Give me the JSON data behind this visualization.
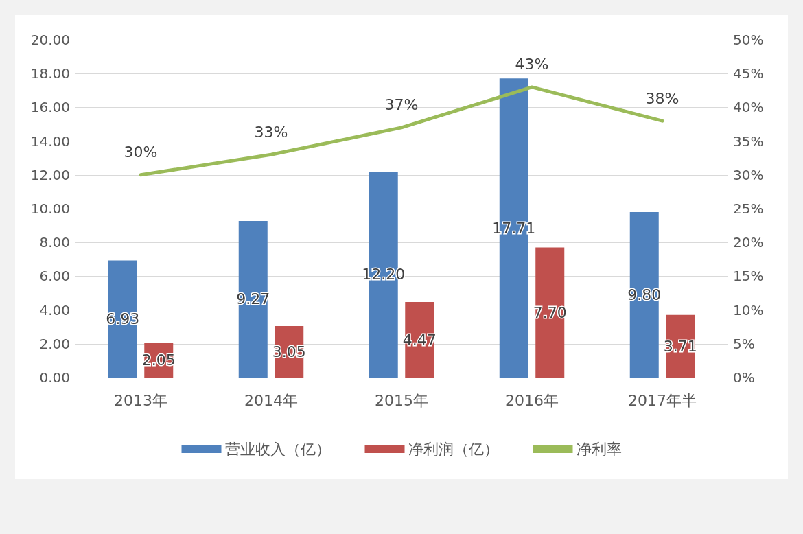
{
  "chart_data": {
    "type": "bar",
    "categories": [
      "2013年",
      "2014年",
      "2015年",
      "2016年",
      "2017年半"
    ],
    "series": [
      {
        "name": "营业收入（亿）",
        "color": "#4f81bd",
        "values": [
          6.93,
          9.27,
          12.2,
          17.71,
          9.8
        ],
        "value_labels": [
          "6.93",
          "9.27",
          "12.20",
          "17.71",
          "9.80"
        ]
      },
      {
        "name": "净利润（亿）",
        "color": "#c0504d",
        "values": [
          2.05,
          3.05,
          4.47,
          7.7,
          3.71
        ],
        "value_labels": [
          "2.05",
          "3.05",
          "4.47",
          "7.70",
          "3.71"
        ]
      },
      {
        "name": "净利率",
        "type": "line",
        "axis": "y2",
        "color": "#9bbb59",
        "values": [
          30,
          33,
          37,
          43,
          38
        ],
        "value_labels": [
          "30%",
          "33%",
          "37%",
          "43%",
          "38%"
        ]
      }
    ],
    "ylim": [
      0,
      20
    ],
    "yticks": [
      {
        "value": 0,
        "label": "0.00"
      },
      {
        "value": 2,
        "label": "2.00"
      },
      {
        "value": 4,
        "label": "4.00"
      },
      {
        "value": 6,
        "label": "6.00"
      },
      {
        "value": 8,
        "label": "8.00"
      },
      {
        "value": 10,
        "label": "10.00"
      },
      {
        "value": 12,
        "label": "12.00"
      },
      {
        "value": 14,
        "label": "14.00"
      },
      {
        "value": 16,
        "label": "16.00"
      },
      {
        "value": 18,
        "label": "18.00"
      },
      {
        "value": 20,
        "label": "20.00"
      }
    ],
    "y2lim": [
      0,
      50
    ],
    "y2ticks": [
      {
        "value": 0,
        "label": "0%"
      },
      {
        "value": 5,
        "label": "5%"
      },
      {
        "value": 10,
        "label": "10%"
      },
      {
        "value": 15,
        "label": "15%"
      },
      {
        "value": 20,
        "label": "20%"
      },
      {
        "value": 25,
        "label": "25%"
      },
      {
        "value": 30,
        "label": "30%"
      },
      {
        "value": 35,
        "label": "35%"
      },
      {
        "value": 40,
        "label": "40%"
      },
      {
        "value": 45,
        "label": "45%"
      },
      {
        "value": 50,
        "label": "50%"
      }
    ],
    "grid": "y",
    "legend": "bottom",
    "marker": "none"
  }
}
